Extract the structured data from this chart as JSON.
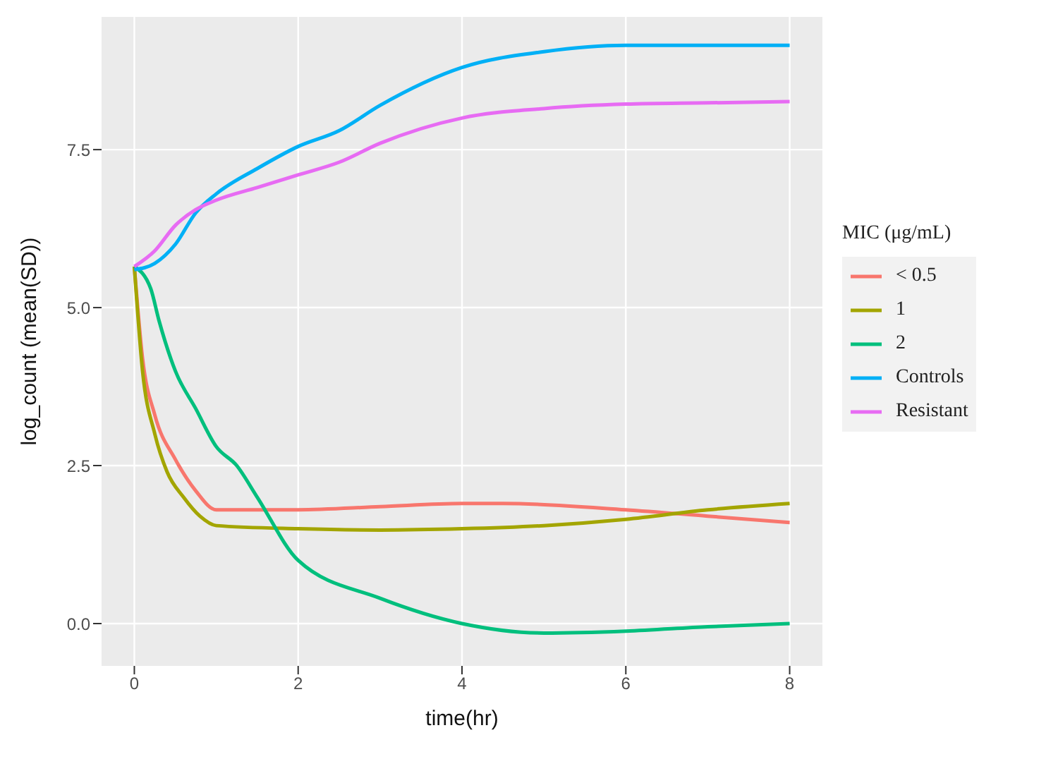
{
  "chart_data": {
    "type": "line",
    "xlabel": "time(hr)",
    "ylabel": "log_count (mean(SD))",
    "legend_title": "MIC (μg/mL)",
    "xlim": [
      -0.4,
      8.4
    ],
    "xticks": [
      0,
      2,
      4,
      6,
      8
    ],
    "ylim": [
      -0.67,
      9.6
    ],
    "yticks": [
      {
        "value": 0,
        "label": "0.0"
      },
      {
        "value": 2.5,
        "label": "2.5"
      },
      {
        "value": 5,
        "label": "5.0"
      },
      {
        "value": 7.5,
        "label": "7.5"
      }
    ],
    "grid": true,
    "legend": "right",
    "marker": "none",
    "line_style": "solid",
    "series": [
      {
        "name": "< 0.5",
        "color": "#f8766d",
        "x": [
          0,
          0.1,
          0.25,
          0.5,
          0.75,
          1,
          2,
          3,
          4,
          4.5,
          6,
          7,
          8
        ],
        "values": [
          5.65,
          4.2,
          3.3,
          2.6,
          2.1,
          1.8,
          1.8,
          1.85,
          1.9,
          1.9,
          1.8,
          1.7,
          1.6
        ]
      },
      {
        "name": "1",
        "color": "#a3a500",
        "x": [
          0,
          0.1,
          0.25,
          0.4,
          0.6,
          0.8,
          1,
          2,
          3,
          4,
          5,
          6,
          7,
          8
        ],
        "values": [
          5.65,
          4.0,
          3.0,
          2.4,
          2.0,
          1.7,
          1.55,
          1.5,
          1.48,
          1.5,
          1.55,
          1.65,
          1.8,
          1.9
        ]
      },
      {
        "name": "2",
        "color": "#00bf7d",
        "x": [
          0,
          0.2,
          0.3,
          0.5,
          0.75,
          1,
          1.25,
          1.5,
          2,
          3,
          4,
          5,
          6,
          7,
          8
        ],
        "values": [
          5.65,
          5.3,
          4.8,
          4.0,
          3.4,
          2.8,
          2.5,
          2.0,
          1.0,
          0.4,
          0.0,
          -0.15,
          -0.12,
          -0.05,
          0.0
        ]
      },
      {
        "name": "Controls",
        "color": "#00b0f6",
        "x": [
          0,
          0.25,
          0.5,
          0.75,
          1,
          1.5,
          2,
          2.5,
          3,
          4,
          5,
          6,
          7,
          8
        ],
        "values": [
          5.6,
          5.7,
          6.0,
          6.5,
          6.8,
          7.2,
          7.55,
          7.8,
          8.2,
          8.8,
          9.05,
          9.15,
          9.15,
          9.15
        ]
      },
      {
        "name": "Resistant",
        "color": "#e76bf3",
        "x": [
          0,
          0.25,
          0.5,
          0.75,
          1,
          1.5,
          2,
          2.5,
          3,
          4,
          5,
          6,
          7,
          8
        ],
        "values": [
          5.65,
          5.9,
          6.3,
          6.55,
          6.7,
          6.9,
          7.1,
          7.3,
          7.6,
          8.0,
          8.15,
          8.22,
          8.24,
          8.26
        ]
      }
    ]
  }
}
